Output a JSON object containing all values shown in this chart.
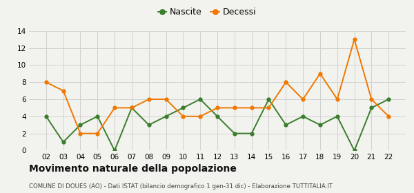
{
  "x_labels": [
    "02",
    "03",
    "04",
    "05",
    "06",
    "07",
    "08",
    "09",
    "10",
    "11",
    "12",
    "13",
    "14",
    "15",
    "16",
    "17",
    "18",
    "19",
    "20",
    "21",
    "22"
  ],
  "x_values": [
    2,
    3,
    4,
    5,
    6,
    7,
    8,
    9,
    10,
    11,
    12,
    13,
    14,
    15,
    16,
    17,
    18,
    19,
    20,
    21,
    22
  ],
  "nascite": [
    4,
    1,
    3,
    4,
    0,
    5,
    3,
    4,
    5,
    6,
    4,
    2,
    2,
    6,
    3,
    4,
    3,
    4,
    0,
    5,
    6
  ],
  "decessi": [
    8,
    7,
    2,
    2,
    5,
    5,
    6,
    6,
    4,
    4,
    5,
    5,
    5,
    5,
    8,
    6,
    9,
    6,
    13,
    6,
    4
  ],
  "nascite_color": "#3a7d2c",
  "decessi_color": "#f07800",
  "title": "Movimento naturale della popolazione",
  "subtitle": "COMUNE DI DOUES (AO) - Dati ISTAT (bilancio demografico 1 gen-31 dic) - Elaborazione TUTTITALIA.IT",
  "legend_nascite": "Nascite",
  "legend_decessi": "Decessi",
  "ylim": [
    0,
    14
  ],
  "yticks": [
    0,
    2,
    4,
    6,
    8,
    10,
    12,
    14
  ],
  "bg_color": "#f2f2ee",
  "grid_color": "#d0d0d0"
}
